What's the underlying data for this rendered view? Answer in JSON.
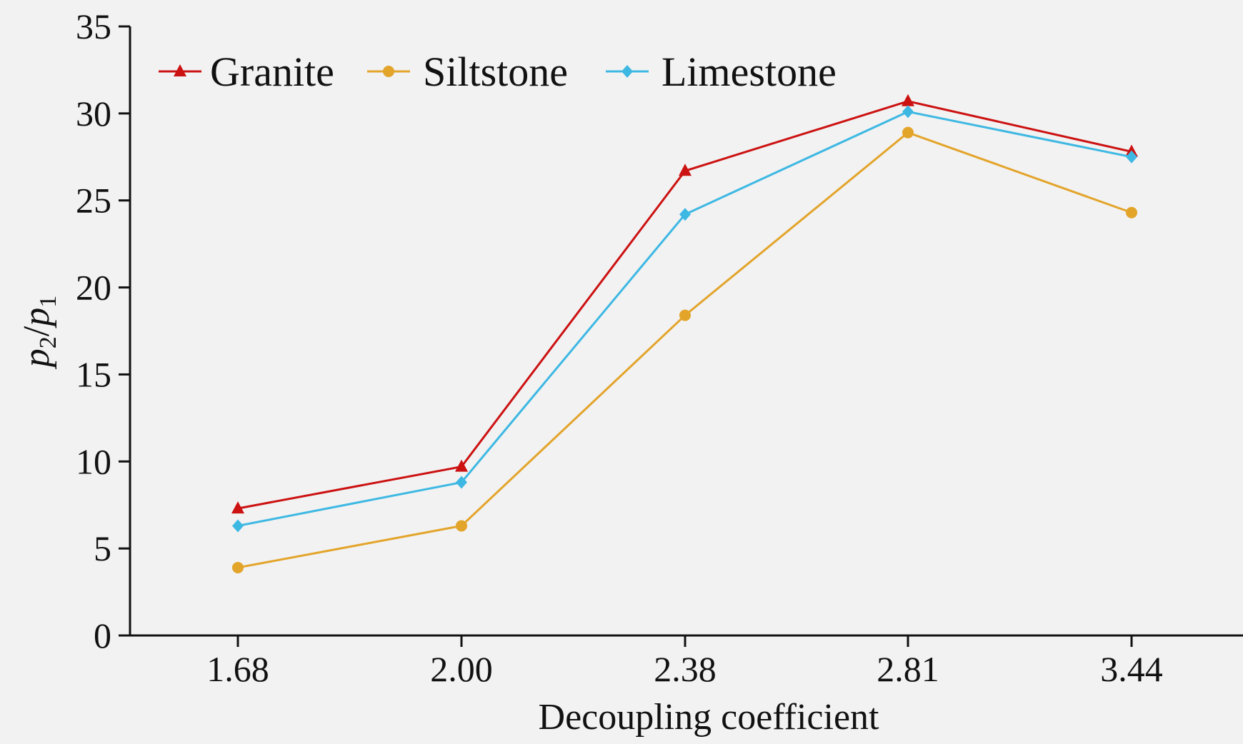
{
  "chart_data": {
    "type": "line",
    "categories": [
      "1.68",
      "2.00",
      "2.38",
      "2.81",
      "3.44"
    ],
    "xlabel": "Decoupling coefficient",
    "ylabel": {
      "p2": "p",
      "sub2": "2",
      "slash": "/",
      "p1": "p",
      "sub1": "1"
    },
    "ylim": [
      0,
      35
    ],
    "yticks": [
      0,
      5,
      10,
      15,
      20,
      25,
      30,
      35
    ],
    "legend_position": "top-left",
    "grid": false,
    "series": [
      {
        "name": "Granite",
        "color": "#cc1111",
        "marker": "triangle",
        "values": [
          7.3,
          9.7,
          26.7,
          30.7,
          27.8
        ]
      },
      {
        "name": "Siltstone",
        "color": "#e3a42a",
        "marker": "circle",
        "values": [
          3.9,
          6.3,
          18.4,
          28.9,
          24.3
        ]
      },
      {
        "name": "Limestone",
        "color": "#3db8e3",
        "marker": "diamond",
        "values": [
          6.3,
          8.8,
          24.2,
          30.1,
          27.5
        ]
      }
    ]
  }
}
